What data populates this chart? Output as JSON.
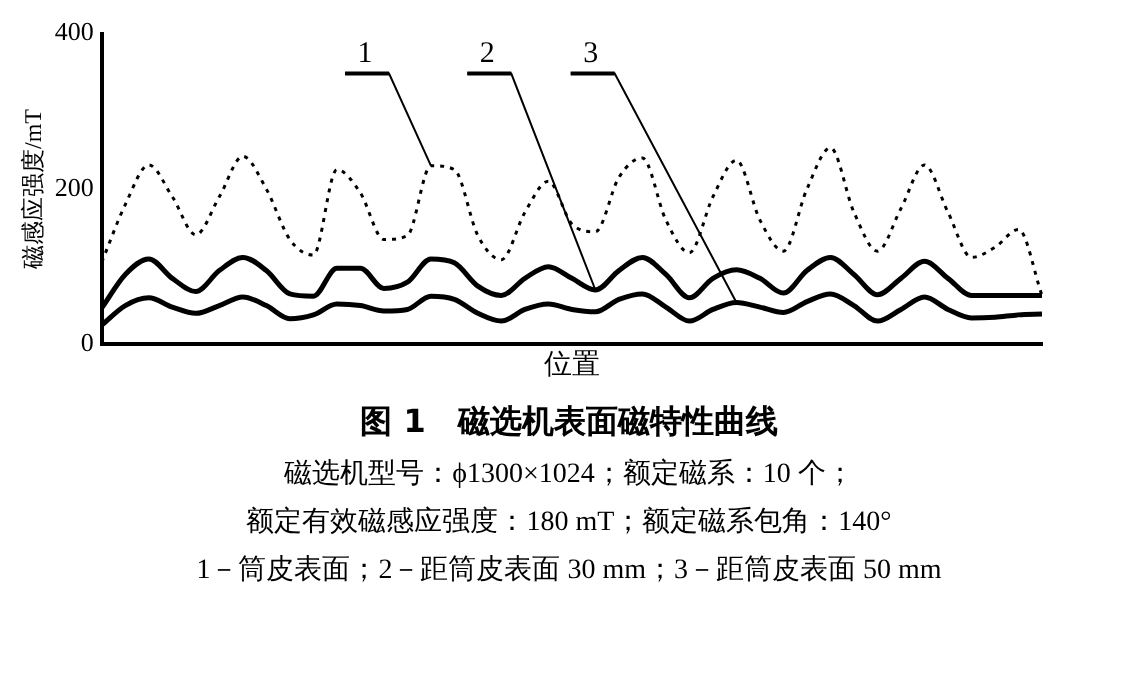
{
  "chart_data": {
    "type": "line",
    "title": "图 1　磁选机表面磁特性曲线",
    "xlabel": "位置",
    "ylabel": "磁感应强度/mT",
    "ylim": [
      0,
      400
    ],
    "yticks": [
      0,
      200,
      400
    ],
    "grid": false,
    "legend": "top",
    "marker": "none",
    "categories": [
      null,
      null,
      null,
      null,
      null,
      null,
      null,
      null,
      null,
      null,
      null,
      null,
      null,
      null,
      null,
      null,
      null,
      null,
      null,
      null,
      null,
      null,
      null,
      null,
      null,
      null,
      null,
      null,
      null,
      null,
      null,
      null,
      null,
      null,
      null,
      null,
      null,
      null,
      null,
      null,
      null
    ],
    "series": [
      {
        "name": "1",
        "color": "#000000",
        "line_style": "dotted",
        "values": [
          106,
          180,
          231,
          190,
          141,
          190,
          242,
          200,
          135,
          115,
          225,
          195,
          135,
          140,
          230,
          225,
          140,
          109,
          170,
          210,
          155,
          145,
          215,
          240,
          160,
          118,
          190,
          237,
          160,
          120,
          200,
          253,
          170,
          120,
          175,
          231,
          170,
          112,
          125,
          148,
          63
        ]
      },
      {
        "name": "2",
        "color": "#000000",
        "line_style": "solid",
        "values": [
          47,
          90,
          110,
          85,
          68,
          95,
          112,
          95,
          65,
          62,
          98,
          98,
          72,
          80,
          110,
          105,
          75,
          63,
          85,
          100,
          85,
          70,
          95,
          112,
          90,
          60,
          85,
          96,
          85,
          66,
          95,
          112,
          90,
          64,
          85,
          107,
          85,
          63,
          63,
          63,
          63
        ]
      },
      {
        "name": "3",
        "color": "#000000",
        "line_style": "solid",
        "values": [
          25,
          50,
          60,
          48,
          40,
          50,
          61,
          50,
          33,
          38,
          52,
          50,
          43,
          45,
          62,
          58,
          40,
          30,
          45,
          52,
          45,
          42,
          58,
          65,
          48,
          30,
          45,
          54,
          48,
          41,
          55,
          65,
          50,
          30,
          45,
          61,
          45,
          34,
          35,
          38,
          39
        ]
      }
    ],
    "annotations": [
      "磁选机型号：ϕ1300×1024；额定磁系：10 个；",
      "额定有效磁感应强度：180 mT；额定磁系包角：140°",
      "1－筒皮表面；2－距筒皮表面 30 mm；3－距筒皮表面 50 mm"
    ]
  }
}
